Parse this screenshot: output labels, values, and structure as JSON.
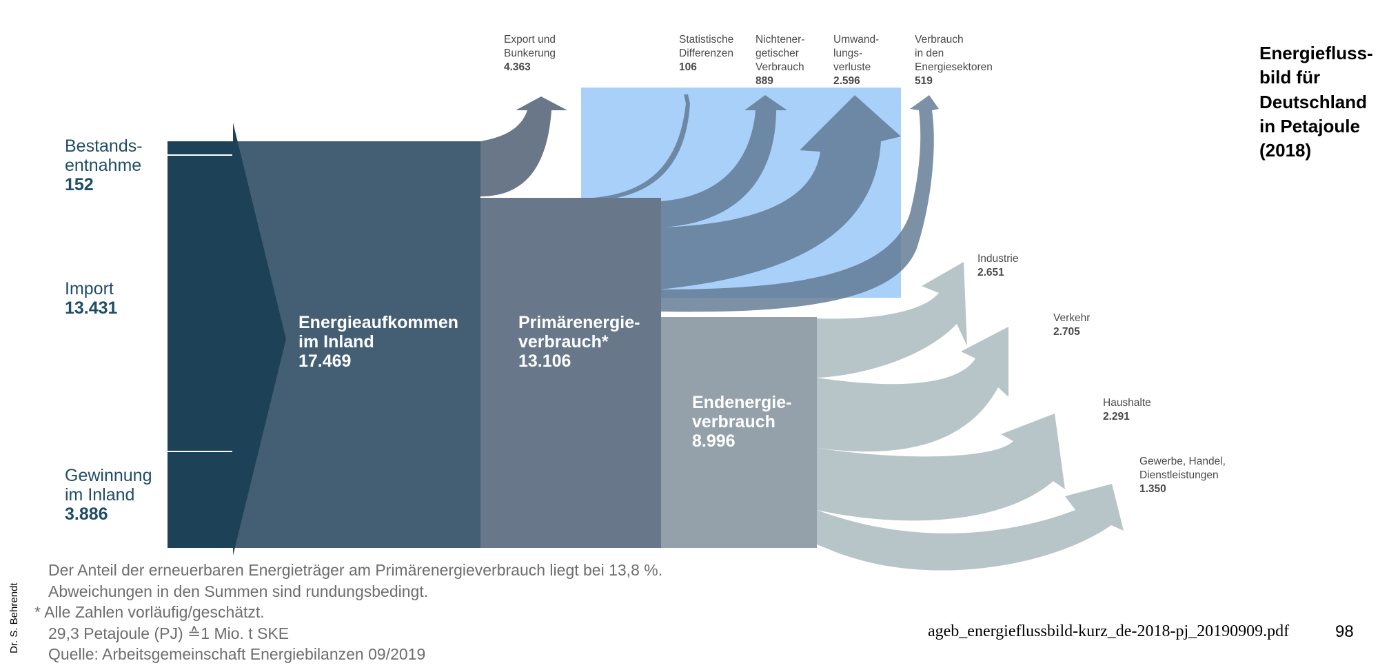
{
  "title_lines": [
    "Energiefluss-",
    "bild für",
    "Deutschland",
    "in Petajoule",
    "(2018)"
  ],
  "sources": [
    {
      "lines": [
        "Bestands-",
        "entnahme"
      ],
      "value": "152"
    },
    {
      "lines": [
        "Import"
      ],
      "value": "13.431"
    },
    {
      "lines": [
        "Gewinnung",
        "im Inland"
      ],
      "value": "3.886"
    }
  ],
  "blocks": [
    {
      "lines": [
        "Energieaufkommen",
        "im Inland"
      ],
      "value": "17.469"
    },
    {
      "lines": [
        "Primärenergie-",
        "verbrauch*"
      ],
      "value": "13.106"
    },
    {
      "lines": [
        "Endenergie-",
        "verbrauch"
      ],
      "value": "8.996"
    }
  ],
  "top_outputs": [
    {
      "lines": [
        "Export und",
        "Bunkerung"
      ],
      "value": "4.363"
    },
    {
      "lines": [
        "Statistische",
        "Differenzen"
      ],
      "value": "106"
    },
    {
      "lines": [
        "Nichtener-",
        "getischer",
        "Verbrauch"
      ],
      "value": "889"
    },
    {
      "lines": [
        "Umwand-",
        "lungs-",
        "verluste"
      ],
      "value": "2.596"
    },
    {
      "lines": [
        "Verbrauch",
        "in den",
        "Energiesektoren"
      ],
      "value": "519"
    }
  ],
  "sectors": [
    {
      "lines": [
        "Industrie"
      ],
      "value": "2.651"
    },
    {
      "lines": [
        "Verkehr"
      ],
      "value": "2.705"
    },
    {
      "lines": [
        "Haushalte"
      ],
      "value": "2.291"
    },
    {
      "lines": [
        "Gewerbe, Handel,",
        "Dienstleistungen"
      ],
      "value": "1.350"
    }
  ],
  "notes": [
    "Der Anteil der erneuerbaren Energieträger am Primärenergieverbrauch liegt bei 13,8 %.",
    "Abweichungen in den Summen sind rundungsbedingt.",
    "* Alle Zahlen vorläufig/geschätzt.",
    "29,3 Petajoule (PJ) ≙1 Mio. t SKE",
    "Quelle: Arbeitsgemeinschaft Energiebilanzen 09/2019"
  ],
  "reference": "ageb_energieflussbild-kurz_de-2018-pj_20190909.pdf",
  "page_number": "98",
  "author": "Dr. S. Behrendt",
  "colors": {
    "source_block": "#1d4257",
    "aufkommen": "#445f74",
    "primaer": "#687789",
    "endenergie": "#94a1aa",
    "export_arrow": "#697788",
    "conversion_arrows": "#5f7892",
    "sector_arrows": "#b8c5c8",
    "highlight": "#a9d0f8"
  }
}
